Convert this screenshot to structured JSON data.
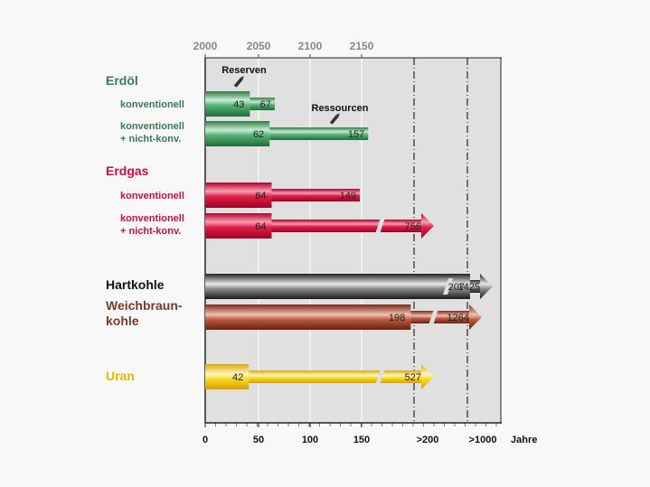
{
  "chart_data": {
    "type": "bar",
    "orientation": "horizontal",
    "xlabel": "Jahre",
    "xlim": [
      0,
      250
    ],
    "grid": true,
    "top_axis_ticks": [
      "2000",
      "2050",
      "2100",
      "2150"
    ],
    "bottom_axis_ticks": [
      "0",
      "50",
      "100",
      "150",
      ">200",
      ">1000"
    ],
    "annotations": {
      "reserves": "Reserven",
      "resources": "Ressourcen"
    },
    "groups": [
      {
        "label": "Erdöl",
        "color": "#3a7a55",
        "rows": [
          {
            "label": "konventionell",
            "reserves": 43,
            "total": 67,
            "arrow": false,
            "break": false
          },
          {
            "label": "konventionell\n+ nicht-konv.",
            "reserves": 62,
            "total": 157,
            "arrow": false,
            "break": false
          }
        ]
      },
      {
        "label": "Erdgas",
        "color": "#c8103e",
        "rows": [
          {
            "label": "konventionell",
            "reserves": 64,
            "total": 149,
            "arrow": false,
            "break": false
          },
          {
            "label": "konventionell\n+ nicht-konv.",
            "reserves": 64,
            "total": 756,
            "arrow": true,
            "break": true
          }
        ]
      },
      {
        "label": "Hartkohle",
        "color": "#111111",
        "rows": [
          {
            "label": "",
            "reserves": 207,
            "total": 1425,
            "arrow": true,
            "break": true
          }
        ]
      },
      {
        "label": "Weichbraun-\nkohle",
        "color": "#7a3a2a",
        "rows": [
          {
            "label": "",
            "reserves": 198,
            "total": 1264,
            "arrow": true,
            "break": true
          }
        ]
      },
      {
        "label": "Uran",
        "color": "#e8b800",
        "rows": [
          {
            "label": "",
            "reserves": 42,
            "total": 527,
            "arrow": true,
            "break": true
          }
        ]
      }
    ]
  },
  "colors": {
    "erdoel": "#3a9a60",
    "erdgas": "#d0103a",
    "hartkohle": "#606060",
    "weichbraunkohle": "#a84030",
    "uran": "#f0c800",
    "plot_bg": "#e0e0e0"
  }
}
